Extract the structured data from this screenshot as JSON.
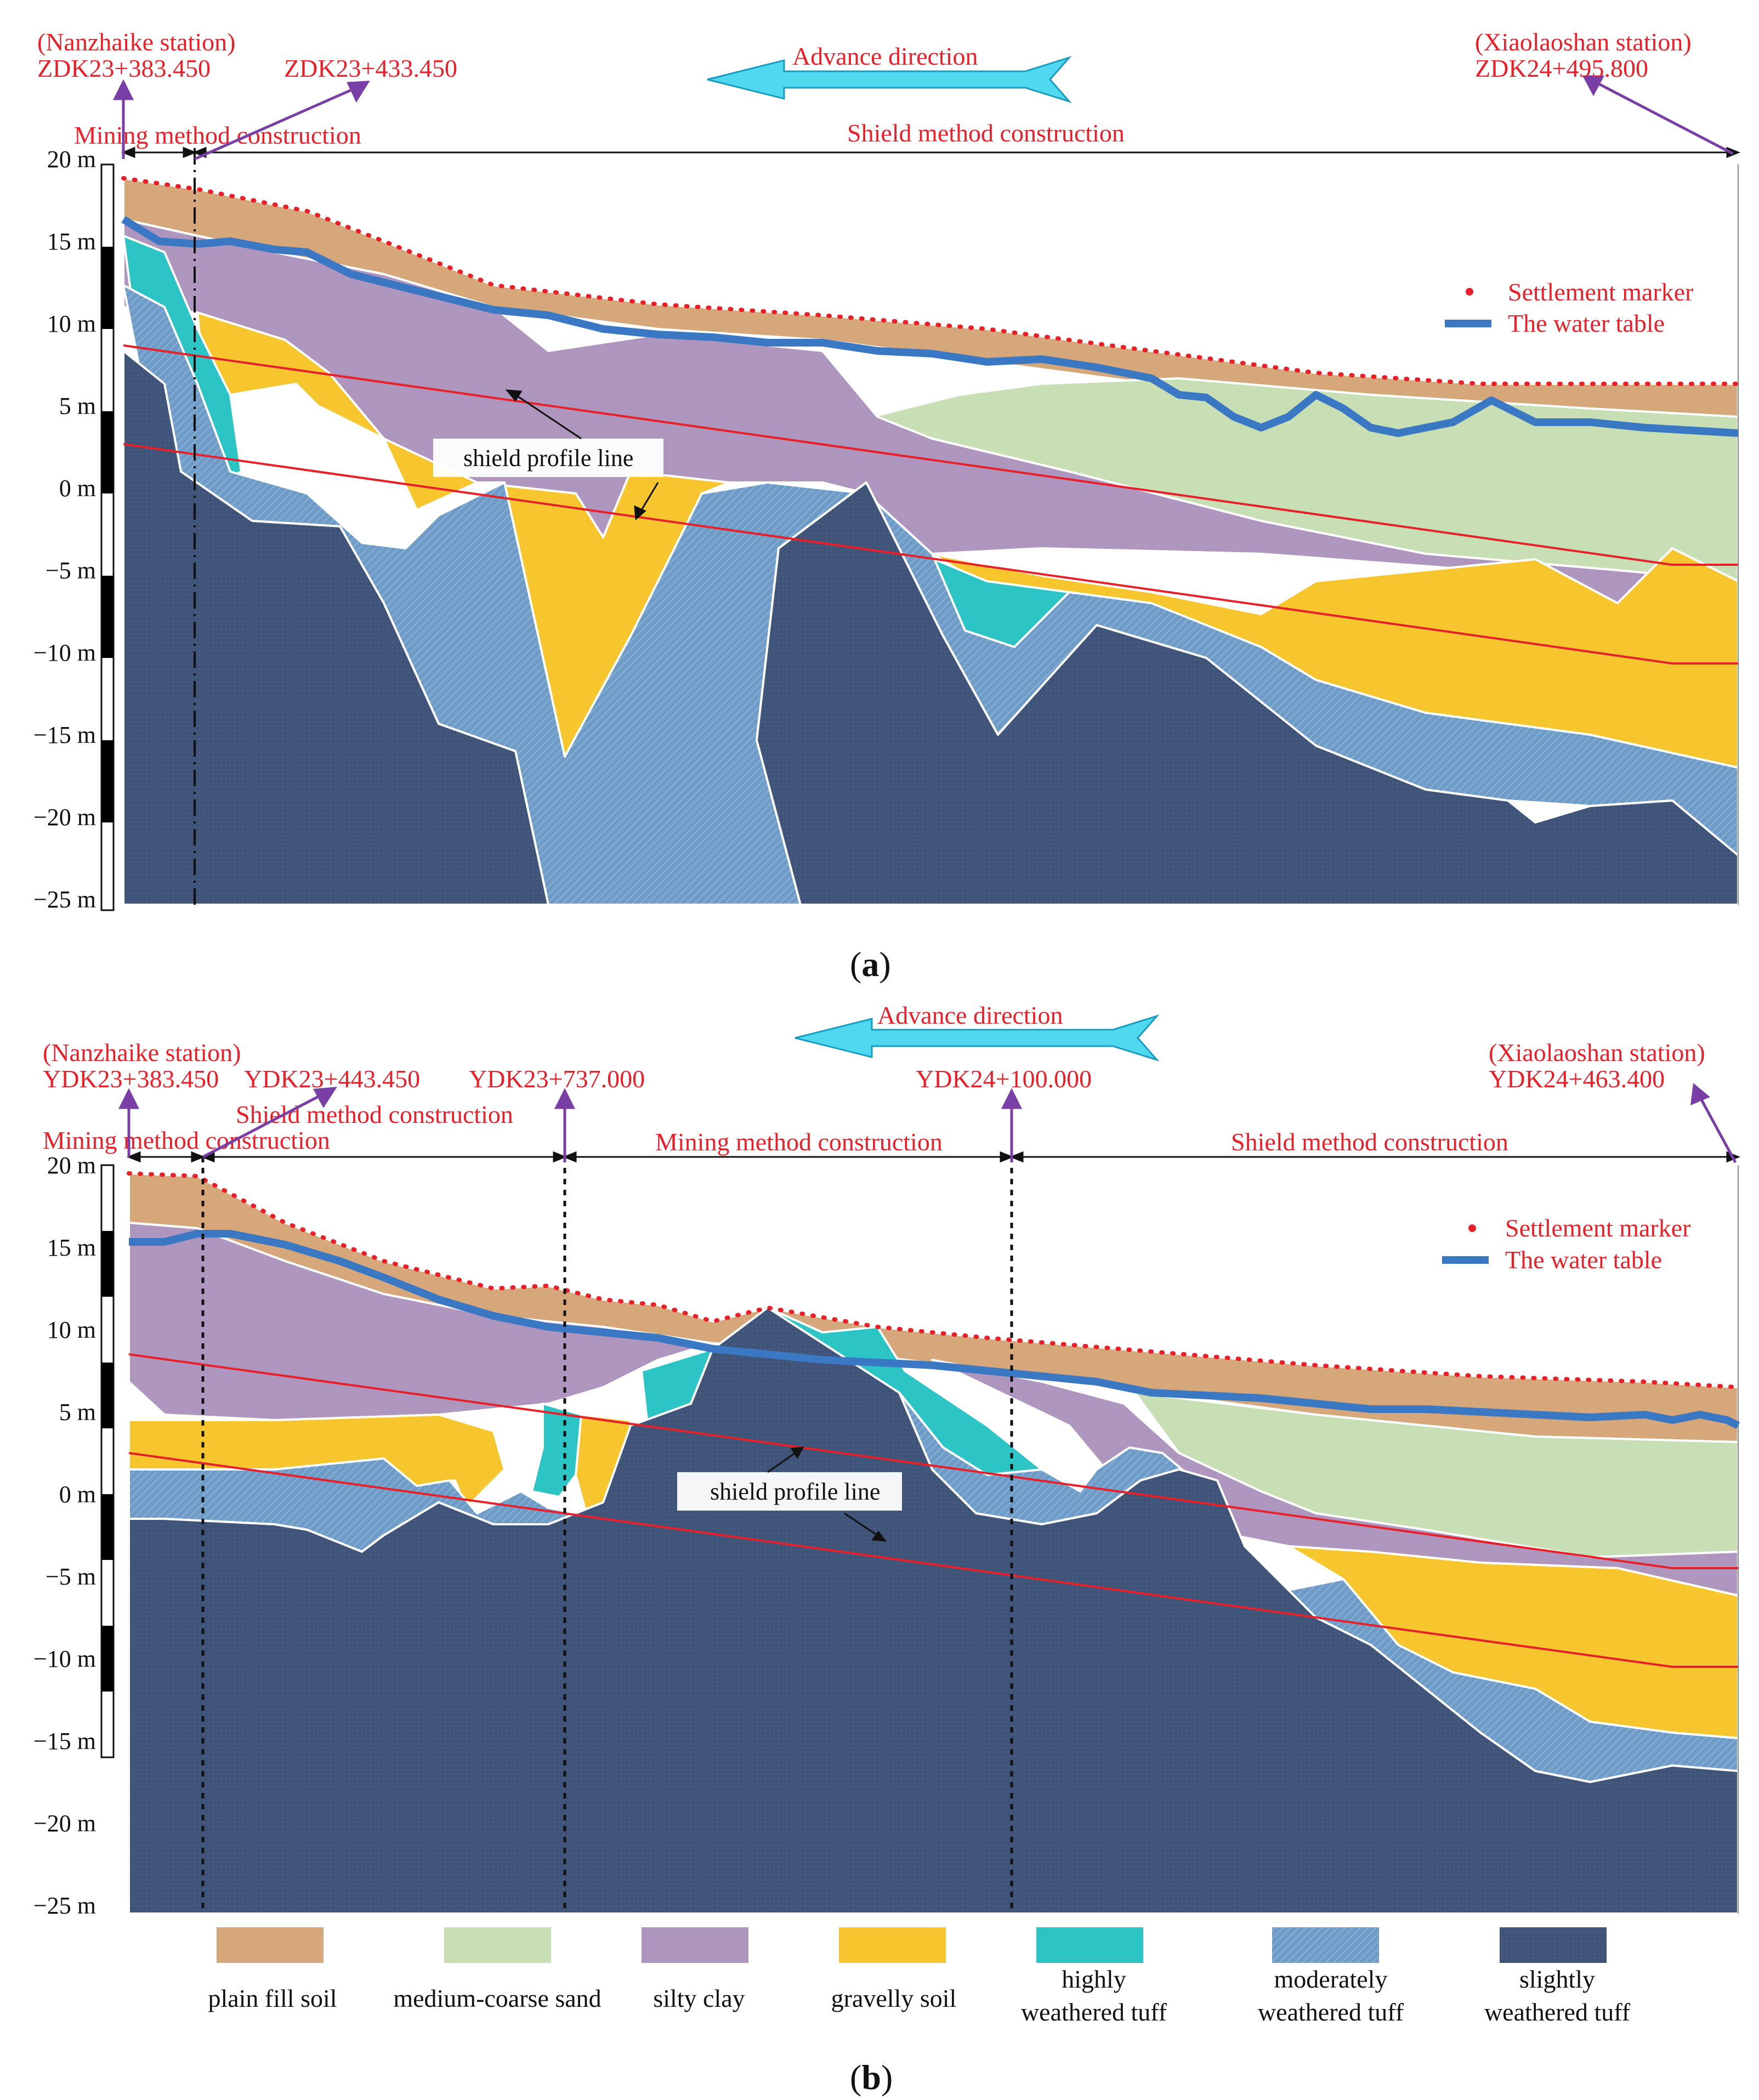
{
  "colors": {
    "plain_fill_soil": "#d6a77a",
    "medium_coarse_sand": "#c8dfb5",
    "silty_clay": "#ae96be",
    "gravelly_soil": "#f7c62e",
    "highly_weathered_tuff": "#2cc4c4",
    "moderately_weathered_tuff": "#6e9cc6",
    "slightly_weathered_tuff": "#3f5478",
    "settlement_marker": "#e8202a",
    "water_table": "#3b78c4",
    "shield_line": "#e8202a",
    "arrow_purple": "#7a3fa6",
    "advance_arrow": "#4fd8f0"
  },
  "depth_ticks": [
    "20 m",
    "15 m",
    "10 m",
    "5 m",
    "0 m",
    "−5 m",
    "−10 m",
    "−15 m",
    "−20 m",
    "−25 m"
  ],
  "panel_a": {
    "label_left": "(",
    "label_letter": "a",
    "label_right": ")",
    "advance_direction": "Advance direction",
    "start_station": "(Nanzhaike station)",
    "start_chainage": "ZDK23+383.450",
    "mid_chainage": "ZDK23+433.450",
    "end_station": "(Xiaolaoshan station)",
    "end_chainage": "ZDK24+495.800",
    "mining_method": "Mining method construction",
    "shield_method": "Shield method construction",
    "shield_profile_line": "shield profile line",
    "legend_settlement": "Settlement marker",
    "legend_water": "The water table"
  },
  "panel_b": {
    "label_left": "(",
    "label_letter": "b",
    "label_right": ")",
    "advance_direction": "Advance direction",
    "start_station": "(Nanzhaike station)",
    "start_chainage": "YDK23+383.450",
    "chainage_2": "YDK23+443.450",
    "chainage_3": "YDK23+737.000",
    "chainage_4": "YDK24+100.000",
    "end_station": "(Xiaolaoshan station)",
    "end_chainage": "YDK24+463.400",
    "mining_method_1": "Mining method construction",
    "shield_method_1": "Shield method construction",
    "mining_method_2": "Mining method construction",
    "shield_method_2": "Shield method construction",
    "shield_profile_line": "shield profile line",
    "legend_settlement": "Settlement marker",
    "legend_water": "The water table"
  },
  "legend": [
    {
      "line1": "plain fill soil",
      "line2": ""
    },
    {
      "line1": "medium-coarse sand",
      "line2": ""
    },
    {
      "line1": "silty clay",
      "line2": ""
    },
    {
      "line1": "gravelly soil",
      "line2": ""
    },
    {
      "line1": "highly",
      "line2": "weathered tuff"
    },
    {
      "line1": "moderately",
      "line2": "weathered tuff"
    },
    {
      "line1": "slightly",
      "line2": "weathered tuff"
    }
  ]
}
